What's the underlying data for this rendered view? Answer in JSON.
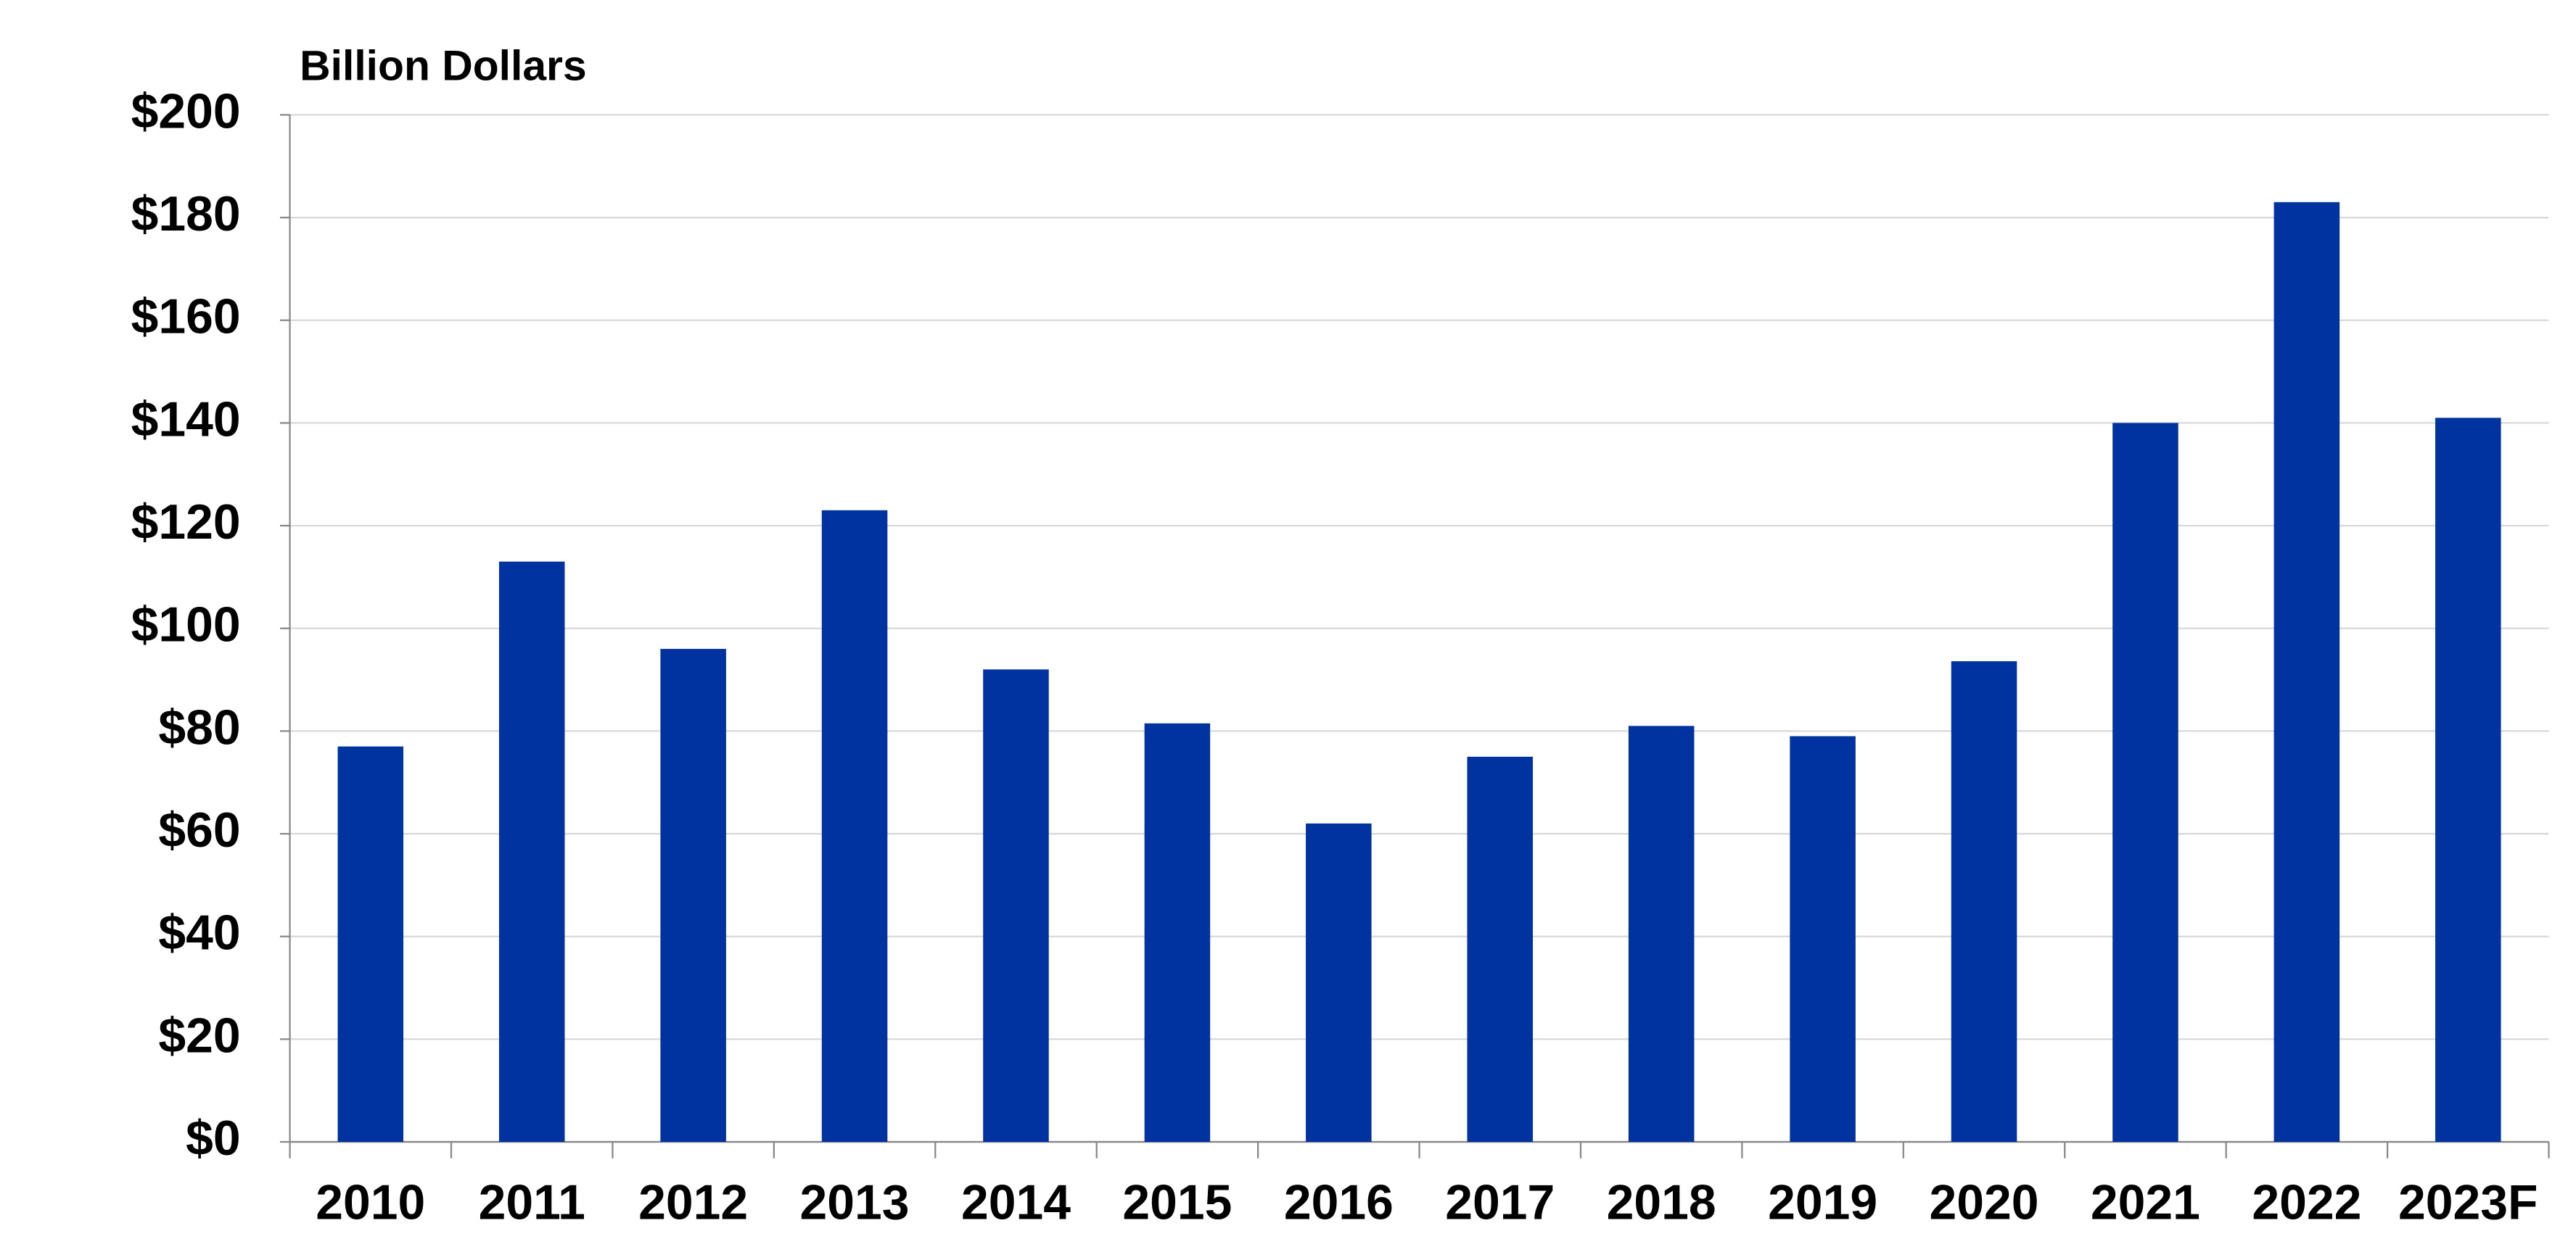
{
  "chart_data": {
    "type": "bar",
    "title": "Billion Dollars",
    "categories": [
      "2010",
      "2011",
      "2012",
      "2013",
      "2014",
      "2015",
      "2016",
      "2017",
      "2018",
      "2019",
      "2020",
      "2021",
      "2022",
      "2023F"
    ],
    "values": [
      77,
      113,
      96,
      123,
      92,
      81.5,
      62,
      75,
      81,
      79,
      93.6,
      140,
      183,
      141
    ],
    "color": "#0033a0",
    "ylim": [
      0,
      200
    ],
    "yticks": [
      {
        "value": 0,
        "label": "$0"
      },
      {
        "value": 20,
        "label": "$20"
      },
      {
        "value": 40,
        "label": "$40"
      },
      {
        "value": 60,
        "label": "$60"
      },
      {
        "value": 80,
        "label": "$80"
      },
      {
        "value": 100,
        "label": "$100"
      },
      {
        "value": 120,
        "label": "$120"
      },
      {
        "value": 140,
        "label": "$140"
      },
      {
        "value": 160,
        "label": "$160"
      },
      {
        "value": 180,
        "label": "$180"
      },
      {
        "value": 200,
        "label": "$200"
      }
    ],
    "grid": true
  }
}
